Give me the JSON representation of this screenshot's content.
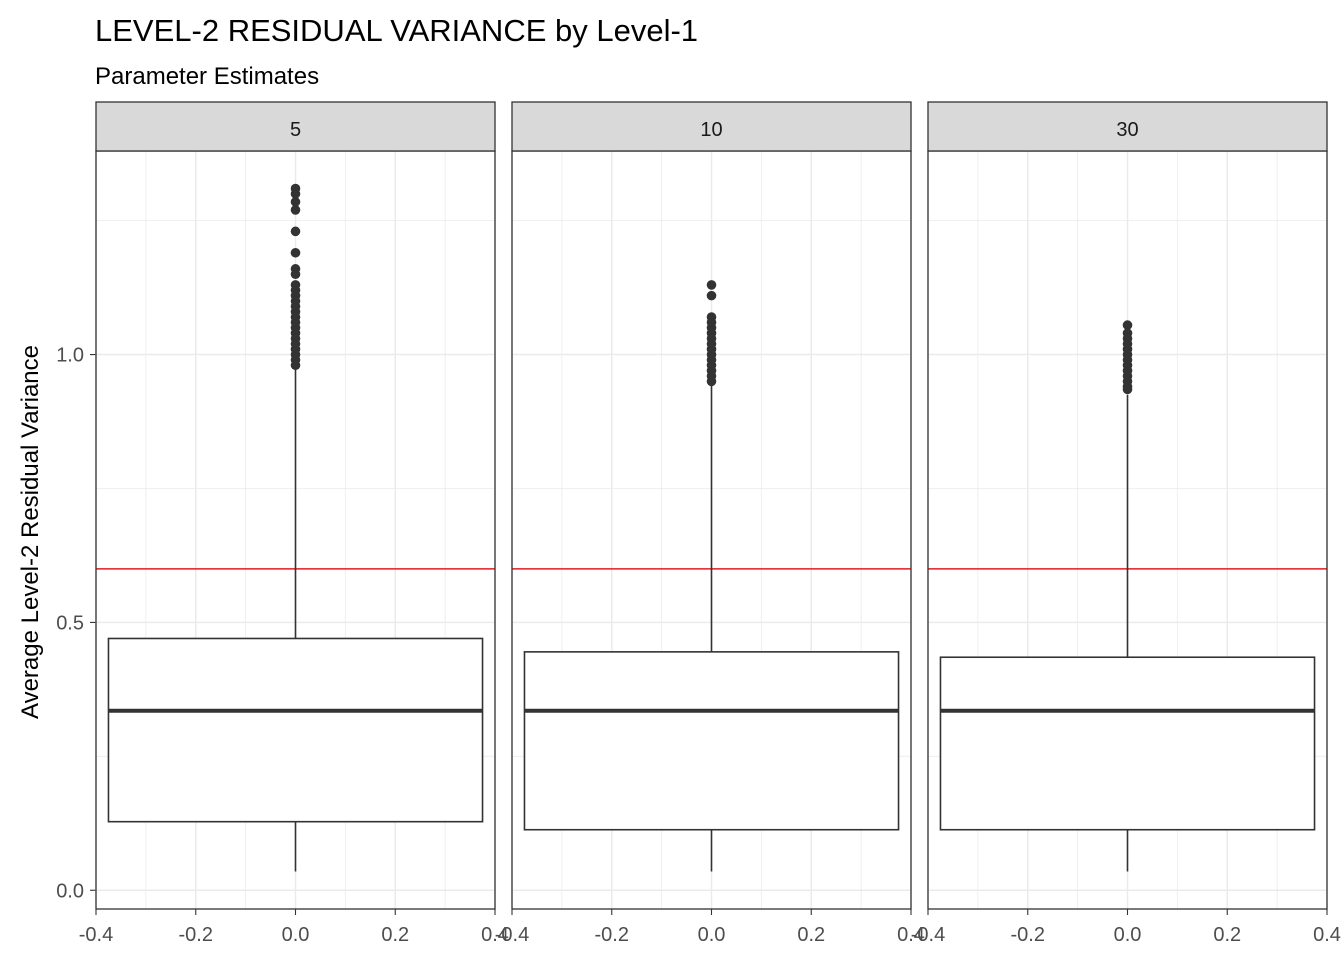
{
  "chart_data": {
    "type": "boxplot",
    "title": "LEVEL-2 RESIDUAL VARIANCE by Level-1",
    "subtitle": "Parameter Estimates",
    "ylabel": "Average Level-2 Residual Variance",
    "xlabel": "",
    "xlim": [
      -0.4,
      0.4
    ],
    "ylim": [
      -0.035,
      1.38
    ],
    "x_ticks": [
      "-0.4",
      "-0.2",
      "0.0",
      "0.2",
      "0.4"
    ],
    "x_tick_values": [
      -0.4,
      -0.2,
      0.0,
      0.2,
      0.4
    ],
    "y_ticks": [
      "0.0",
      "0.5",
      "1.0"
    ],
    "y_tick_values": [
      0.0,
      0.5,
      1.0
    ],
    "grid": true,
    "reference_line": {
      "y": 0.6,
      "color": "#e31a1c"
    },
    "colors": {
      "box_line": "#333333",
      "outlier": "#333333",
      "strip_bg": "#d9d9d9",
      "grid": "#ebebeb",
      "reference": "#e31a1c"
    },
    "facets": [
      {
        "label": "5",
        "whisker_low": 0.035,
        "q1": 0.128,
        "median": 0.335,
        "q3": 0.47,
        "whisker_high": 0.975,
        "outliers": [
          1.31,
          1.3,
          1.285,
          1.27,
          1.23,
          1.19,
          1.16,
          1.15,
          1.13,
          1.12,
          1.11,
          1.1,
          1.09,
          1.08,
          1.07,
          1.06,
          1.05,
          1.04,
          1.03,
          1.02,
          1.01,
          1.0,
          0.99,
          0.98
        ]
      },
      {
        "label": "10",
        "whisker_low": 0.035,
        "q1": 0.113,
        "median": 0.335,
        "q3": 0.445,
        "whisker_high": 0.945,
        "outliers": [
          1.13,
          1.11,
          1.07,
          1.06,
          1.05,
          1.04,
          1.03,
          1.02,
          1.01,
          1.0,
          0.99,
          0.98,
          0.97,
          0.96,
          0.95
        ]
      },
      {
        "label": "30",
        "whisker_low": 0.035,
        "q1": 0.113,
        "median": 0.335,
        "q3": 0.435,
        "whisker_high": 0.925,
        "outliers": [
          1.055,
          1.04,
          1.03,
          1.02,
          1.01,
          1.0,
          0.99,
          0.98,
          0.97,
          0.96,
          0.95,
          0.94,
          0.935
        ]
      }
    ]
  }
}
